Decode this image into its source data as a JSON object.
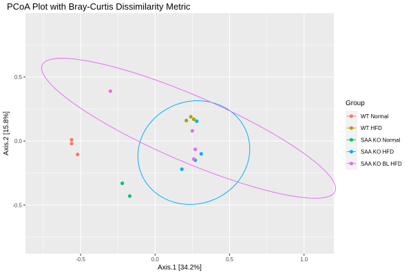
{
  "chart_data": {
    "type": "scatter",
    "title": "PCoA Plot with Bray-Curtis Dissimilarity Metric",
    "xlabel": "Axis.1   [34.2%]",
    "ylabel": "Axis.2   [15.8%]",
    "xlim": [
      -0.87,
      1.2
    ],
    "ylim": [
      -0.88,
      1.0
    ],
    "x_ticks": [
      -0.5,
      0.0,
      0.5,
      1.0
    ],
    "x_tick_labels": [
      "-0.5",
      "0.0",
      "0.5",
      "1.0"
    ],
    "y_ticks": [
      -0.5,
      0.0,
      0.5
    ],
    "y_tick_labels": [
      "-0.5",
      "0.0",
      "0.5"
    ],
    "grid": true,
    "legend": {
      "title": "Group",
      "placement": "right"
    },
    "series": [
      {
        "name": "WT Normal",
        "color": "#F8766D",
        "points": [
          [
            -0.56,
            0.01
          ],
          [
            -0.56,
            -0.02
          ],
          [
            -0.52,
            -0.105
          ]
        ]
      },
      {
        "name": "WT HFD",
        "color": "#A3A500",
        "points": [
          [
            0.21,
            0.16
          ],
          [
            0.24,
            0.19
          ],
          [
            0.26,
            0.17
          ]
        ]
      },
      {
        "name": "SAA KO Normal",
        "color": "#00BF7D",
        "points": [
          [
            -0.22,
            -0.33
          ],
          [
            -0.17,
            -0.43
          ]
        ]
      },
      {
        "name": "SAA KO HFD",
        "color": "#00B0F6",
        "points": [
          [
            0.28,
            0.155
          ],
          [
            0.31,
            -0.1
          ],
          [
            0.27,
            -0.15
          ],
          [
            0.18,
            -0.22
          ]
        ]
      },
      {
        "name": "SAA KO BL HFD",
        "color": "#E76BF3",
        "points": [
          [
            -0.3,
            0.39
          ],
          [
            0.25,
            0.08
          ],
          [
            0.27,
            -0.065
          ],
          [
            0.26,
            -0.14
          ]
        ]
      }
    ],
    "ellipses": [
      {
        "series": "SAA KO HFD",
        "center": [
          0.26,
          -0.09
        ],
        "semi_axes": [
          0.41,
          0.37
        ],
        "rotation_deg": 69
      },
      {
        "series": "SAA KO BL HFD",
        "center": [
          0.225,
          0.1
        ],
        "semi_axes": [
          1.1,
          0.25
        ],
        "rotation_deg": -27
      }
    ]
  }
}
